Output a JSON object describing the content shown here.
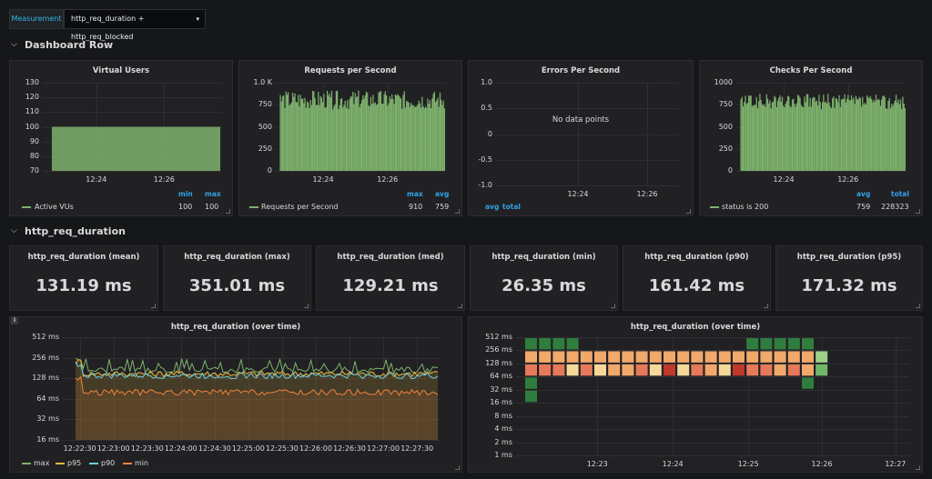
{
  "toolbar": {
    "variable_label": "Measurement",
    "variable_value": "http_req_duration + http_req_blocked"
  },
  "rows": [
    {
      "title": "Dashboard Row"
    },
    {
      "title": "http_req_duration"
    }
  ],
  "panels": {
    "virtual_users": {
      "title": "Virtual Users",
      "y_ticks": [
        "130",
        "120",
        "110",
        "100",
        "90",
        "80",
        "70"
      ],
      "x_ticks": [
        "12:24",
        "12:26"
      ],
      "legend_headers": [
        "min",
        "max"
      ],
      "legend": {
        "name": "Active VUs",
        "values": [
          "100",
          "100"
        ],
        "color": "#7eb26d"
      }
    },
    "requests_per_second": {
      "title": "Requests per Second",
      "y_ticks": [
        "1.0 K",
        "750",
        "500",
        "250",
        "0"
      ],
      "x_ticks": [
        "12:24",
        "12:26"
      ],
      "legend_headers": [
        "max",
        "avg"
      ],
      "legend": {
        "name": "Requests per Second",
        "values": [
          "910",
          "759"
        ],
        "color": "#7eb26d"
      }
    },
    "errors_per_second": {
      "title": "Errors Per Second",
      "y_ticks": [
        "1.0",
        "0.5",
        "0",
        "-0.5",
        "-1.0"
      ],
      "x_ticks": [
        "12:24",
        "12:26"
      ],
      "no_data": "No data points",
      "legend_headers": [
        "avg",
        "total"
      ]
    },
    "checks_per_second": {
      "title": "Checks Per Second",
      "y_ticks": [
        "1000",
        "750",
        "500",
        "250",
        "0"
      ],
      "x_ticks": [
        "12:24",
        "12:26"
      ],
      "legend_headers": [
        "avg",
        "total"
      ],
      "legend": {
        "name": "status is 200",
        "values": [
          "759",
          "228323"
        ],
        "color": "#7eb26d"
      }
    },
    "stats": [
      {
        "title": "http_req_duration (mean)",
        "value": "131.19 ms"
      },
      {
        "title": "http_req_duration (max)",
        "value": "351.01 ms"
      },
      {
        "title": "http_req_duration (med)",
        "value": "129.21 ms"
      },
      {
        "title": "http_req_duration (min)",
        "value": "26.35 ms"
      },
      {
        "title": "http_req_duration (p90)",
        "value": "161.42 ms"
      },
      {
        "title": "http_req_duration (p95)",
        "value": "171.32 ms"
      }
    ],
    "duration_lines": {
      "title": "http_req_duration (over time)",
      "info": "i",
      "y_ticks": [
        "512 ms",
        "256 ms",
        "128 ms",
        "64 ms",
        "32 ms",
        "16 ms"
      ],
      "x_ticks": [
        "12:22:30",
        "12:23:00",
        "12:23:30",
        "12:24:00",
        "12:24:30",
        "12:25:00",
        "12:25:30",
        "12:26:00",
        "12:26:30",
        "12:27:00",
        "12:27:30"
      ],
      "legend": [
        {
          "name": "max",
          "color": "#7eb26d"
        },
        {
          "name": "p95",
          "color": "#eab839"
        },
        {
          "name": "p90",
          "color": "#6ed0e0"
        },
        {
          "name": "min",
          "color": "#ef843c"
        }
      ]
    },
    "duration_heatmap": {
      "title": "http_req_duration (over time)",
      "y_ticks": [
        "512 ms",
        "256 ms",
        "128 ms",
        "64 ms",
        "32 ms",
        "16 ms",
        "8 ms",
        "4 ms",
        "2 ms",
        "1 ms"
      ],
      "x_ticks": [
        "12:23",
        "12:24",
        "12:25",
        "12:26",
        "12:27"
      ]
    }
  },
  "chart_data": [
    {
      "type": "bar",
      "title": "Virtual Users",
      "series": [
        {
          "name": "Active VUs",
          "values": [
            100,
            100,
            100,
            100,
            100,
            100
          ]
        }
      ],
      "ylim": [
        70,
        130
      ]
    },
    {
      "type": "bar",
      "title": "Requests per Second",
      "series": [
        {
          "name": "Requests per Second",
          "max": 910,
          "avg": 759
        }
      ],
      "ylim": [
        0,
        1000
      ]
    },
    {
      "type": "line",
      "title": "Errors Per Second",
      "series": [],
      "ylim": [
        -1.0,
        1.0
      ]
    },
    {
      "type": "bar",
      "title": "Checks Per Second",
      "series": [
        {
          "name": "status is 200",
          "avg": 759,
          "total": 228323
        }
      ],
      "ylim": [
        0,
        1000
      ]
    },
    {
      "type": "line",
      "title": "http_req_duration (over time)",
      "scale": "log2",
      "ylim": [
        16,
        512
      ],
      "series": [
        {
          "name": "max",
          "approx_level_ms": 170
        },
        {
          "name": "p95",
          "approx_level_ms": 150
        },
        {
          "name": "p90",
          "approx_level_ms": 140
        },
        {
          "name": "min",
          "approx_level_ms": 80
        }
      ]
    },
    {
      "type": "heatmap",
      "title": "http_req_duration (over time)",
      "scale": "log2",
      "ylim": [
        1,
        512
      ],
      "buckets_ms": [
        256,
        128,
        64,
        32,
        16
      ],
      "columns": [
        [
          1,
          1,
          1,
          1,
          0,
          0,
          0,
          0,
          0,
          0,
          0,
          0,
          0,
          0,
          0,
          0,
          1,
          1,
          1,
          1,
          1,
          0
        ],
        [
          3,
          3,
          3,
          3,
          3,
          3,
          3,
          3,
          3,
          3,
          3,
          3,
          3,
          3,
          3,
          3,
          3,
          3,
          3,
          3,
          3,
          2
        ],
        [
          2,
          2,
          2,
          4,
          2,
          4,
          3,
          3,
          2,
          4,
          3,
          4,
          2,
          3,
          4,
          3,
          2,
          2,
          3,
          2,
          3,
          1
        ],
        [
          1,
          0,
          0,
          0,
          0,
          0,
          0,
          0,
          0,
          0,
          0,
          0,
          0,
          0,
          0,
          0,
          0,
          0,
          0,
          0,
          1,
          0
        ],
        [
          1,
          0,
          0,
          0,
          0,
          0,
          0,
          0,
          0,
          0,
          0,
          0,
          0,
          0,
          0,
          0,
          0,
          0,
          0,
          0,
          0,
          0
        ]
      ]
    }
  ]
}
